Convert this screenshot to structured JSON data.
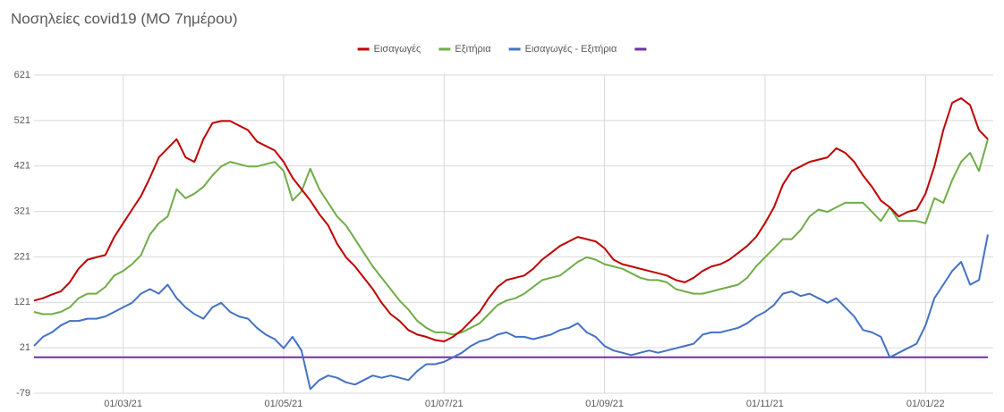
{
  "chart_data": {
    "type": "line",
    "title": "Νοσηλείες covid19 (ΜΟ 7ημέρου)",
    "categories": [
      null,
      null,
      null,
      null,
      null,
      null,
      null,
      null,
      null,
      null,
      "01/03/21",
      null,
      null,
      null,
      null,
      null,
      null,
      null,
      null,
      null,
      null,
      null,
      null,
      null,
      null,
      null,
      null,
      null,
      "01/05/21",
      null,
      null,
      null,
      null,
      null,
      null,
      null,
      null,
      null,
      null,
      null,
      null,
      null,
      null,
      null,
      null,
      null,
      "01/07/21",
      null,
      null,
      null,
      null,
      null,
      null,
      null,
      null,
      null,
      null,
      null,
      null,
      null,
      null,
      null,
      null,
      null,
      "01/09/21",
      null,
      null,
      null,
      null,
      null,
      null,
      null,
      null,
      null,
      null,
      null,
      null,
      null,
      null,
      null,
      null,
      null,
      "01/11/21",
      null,
      null,
      null,
      null,
      null,
      null,
      null,
      null,
      null,
      null,
      null,
      null,
      null,
      null,
      null,
      null,
      null,
      "01/01/22",
      null,
      null,
      null,
      null,
      null,
      null,
      null
    ],
    "series": [
      {
        "name": "Εισαγωγές",
        "color": "#c00000",
        "values": [
          125,
          130,
          138,
          145,
          165,
          195,
          215,
          220,
          225,
          265,
          295,
          325,
          355,
          395,
          440,
          460,
          480,
          440,
          430,
          480,
          515,
          520,
          520,
          510,
          500,
          475,
          465,
          455,
          430,
          395,
          370,
          345,
          315,
          290,
          250,
          220,
          200,
          175,
          150,
          120,
          95,
          80,
          60,
          50,
          45,
          38,
          35,
          45,
          60,
          80,
          100,
          130,
          155,
          170,
          175,
          180,
          195,
          215,
          230,
          245,
          255,
          265,
          260,
          255,
          240,
          215,
          205,
          200,
          195,
          190,
          185,
          180,
          170,
          165,
          175,
          190,
          200,
          205,
          215,
          230,
          245,
          265,
          295,
          330,
          380,
          410,
          420,
          430,
          435,
          440,
          460,
          450,
          430,
          400,
          375,
          345,
          330,
          310,
          320,
          325,
          360,
          420,
          500,
          560,
          570,
          555,
          500,
          480
        ]
      },
      {
        "name": "Εξιτήρια",
        "color": "#70ad47",
        "values": [
          100,
          95,
          95,
          100,
          110,
          130,
          140,
          140,
          155,
          180,
          190,
          205,
          225,
          270,
          295,
          310,
          370,
          350,
          360,
          375,
          400,
          420,
          430,
          425,
          420,
          420,
          425,
          430,
          410,
          345,
          365,
          415,
          370,
          340,
          310,
          290,
          260,
          230,
          200,
          175,
          150,
          125,
          105,
          80,
          65,
          55,
          55,
          50,
          55,
          65,
          75,
          95,
          115,
          125,
          130,
          140,
          155,
          170,
          175,
          180,
          195,
          210,
          220,
          215,
          205,
          200,
          195,
          185,
          175,
          170,
          170,
          165,
          150,
          145,
          140,
          140,
          145,
          150,
          155,
          160,
          175,
          200,
          220,
          240,
          260,
          260,
          280,
          310,
          325,
          320,
          330,
          340,
          340,
          340,
          320,
          300,
          330,
          300,
          300,
          300,
          295,
          350,
          340,
          390,
          430,
          450,
          410,
          480
        ]
      },
      {
        "name": "Εισαγωγές - Εξιτήρια",
        "color": "#4472c4",
        "values": [
          25,
          45,
          55,
          70,
          80,
          80,
          85,
          85,
          90,
          100,
          110,
          120,
          140,
          150,
          140,
          160,
          130,
          110,
          95,
          85,
          110,
          120,
          100,
          90,
          85,
          65,
          50,
          40,
          20,
          45,
          15,
          -70,
          -50,
          -40,
          -45,
          -55,
          -60,
          -50,
          -40,
          -45,
          -40,
          -45,
          -50,
          -30,
          -15,
          -15,
          -10,
          0,
          10,
          25,
          35,
          40,
          50,
          55,
          45,
          45,
          40,
          45,
          50,
          60,
          65,
          75,
          55,
          45,
          25,
          15,
          10,
          5,
          10,
          15,
          10,
          15,
          20,
          25,
          30,
          50,
          55,
          55,
          60,
          65,
          75,
          90,
          100,
          115,
          140,
          145,
          135,
          140,
          130,
          120,
          130,
          110,
          90,
          60,
          55,
          45,
          0,
          10,
          20,
          30,
          70,
          130,
          160,
          190,
          210,
          160,
          170,
          270
        ]
      },
      {
        "color": "#7030a0",
        "values": [
          0,
          0,
          0,
          0,
          0,
          0,
          0,
          0,
          0,
          0,
          0,
          0,
          0,
          0,
          0,
          0,
          0,
          0,
          0,
          0,
          0,
          0,
          0,
          0,
          0,
          0,
          0,
          0,
          0,
          0,
          0,
          0,
          0,
          0,
          0,
          0,
          0,
          0,
          0,
          0,
          0,
          0,
          0,
          0,
          0,
          0,
          0,
          0,
          0,
          0,
          0,
          0,
          0,
          0,
          0,
          0,
          0,
          0,
          0,
          0,
          0,
          0,
          0,
          0,
          0,
          0,
          0,
          0,
          0,
          0,
          0,
          0,
          0,
          0,
          0,
          0,
          0,
          0,
          0,
          0,
          0,
          0,
          0,
          0,
          0,
          0,
          0,
          0,
          0,
          0,
          0,
          0,
          0,
          0,
          0,
          0,
          0,
          0,
          0,
          0,
          0,
          0,
          0,
          0,
          0,
          0,
          0,
          0
        ]
      }
    ],
    "ylim": [
      -79,
      621
    ],
    "yticks": [
      -79,
      21,
      121,
      221,
      321,
      421,
      521,
      621
    ],
    "grid": true,
    "legend": "top"
  }
}
